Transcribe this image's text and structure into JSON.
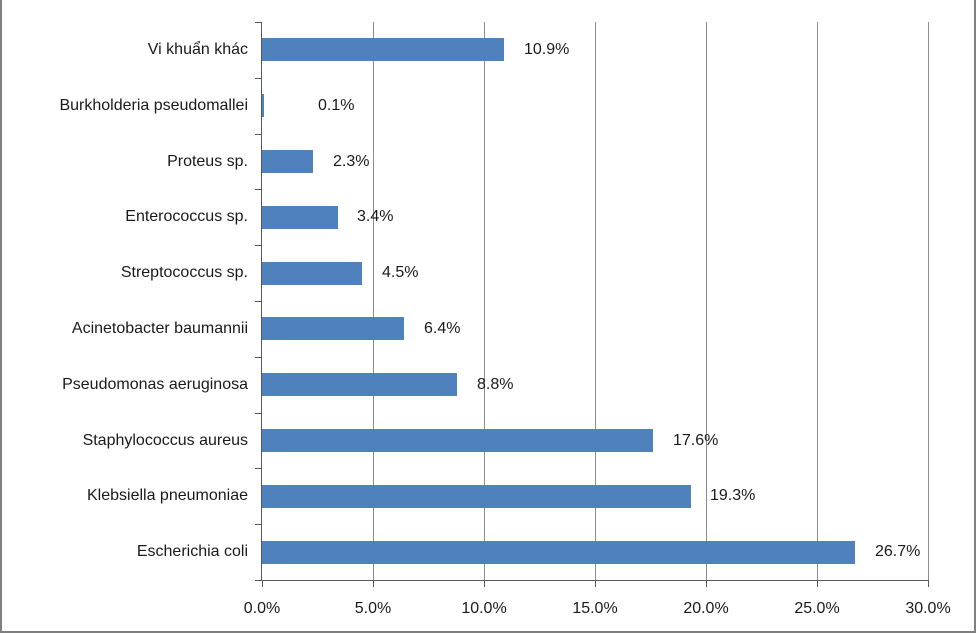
{
  "window": {
    "background": "#ffffff",
    "frame_border_color": "#7f7f7f"
  },
  "chart_data": {
    "type": "bar",
    "orientation": "horizontal",
    "title": "",
    "xlabel": "",
    "ylabel": "",
    "legend": false,
    "grid": true,
    "categories": [
      "Vi khuẩn khác",
      "Burkholderia pseudomallei",
      "Proteus sp.",
      "Enterococcus sp.",
      "Streptococcus sp.",
      "Acinetobacter baumannii",
      "Pseudomonas aeruginosa",
      "Staphylococcus aureus",
      "Klebsiella pneumoniae",
      "Escherichia coli"
    ],
    "values": [
      10.9,
      0.1,
      2.3,
      3.4,
      4.5,
      6.4,
      8.8,
      17.6,
      19.3,
      26.7
    ],
    "value_labels": [
      "10.9%",
      "0.1%",
      "2.3%",
      "3.4%",
      "4.5%",
      "6.4%",
      "8.8%",
      "17.6%",
      "19.3%",
      "26.7%"
    ],
    "x_tick_values": [
      0,
      5,
      10,
      15,
      20,
      25,
      30
    ],
    "x_tick_labels": [
      "0.0%",
      "5.0%",
      "10.0%",
      "15.0%",
      "20.0%",
      "25.0%",
      "30.0%"
    ],
    "xlim": [
      0,
      30
    ],
    "bar_color": "#4f81bd",
    "gridline_color": "#8c8c8c",
    "axis_color": "#595959",
    "text_color": "#1a1a1a"
  }
}
